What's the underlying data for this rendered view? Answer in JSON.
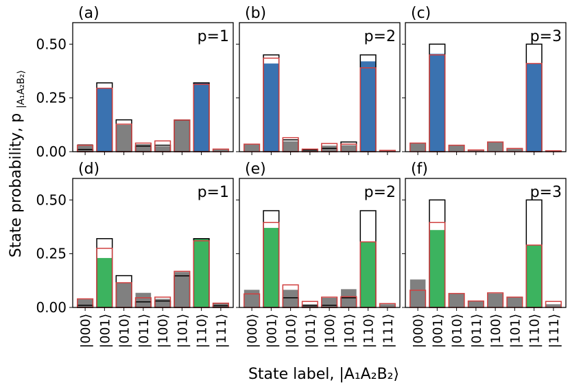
{
  "figure": {
    "ylabel": "State probability, p",
    "ylabel_sub": "|A₁A₂B₂⟩",
    "xlabel": "State label, |A₁A₂B₂⟩"
  },
  "colors": {
    "blue": "#3a72b0",
    "green": "#3cb35f",
    "gray": "#808080",
    "red_outline": "#d04040",
    "black_outline": "#000000"
  },
  "chart_data": [
    {
      "type": "bar",
      "panel": "(a)",
      "p_label": "p=1",
      "fill": "blue",
      "row": 0,
      "col": 0,
      "categories": [
        "|000⟩",
        "|001⟩",
        "|010⟩",
        "|011⟩",
        "|100⟩",
        "|101⟩",
        "|110⟩",
        "|111⟩"
      ],
      "series": [
        {
          "name": "measured",
          "values": [
            0.035,
            0.295,
            0.125,
            0.035,
            0.025,
            0.147,
            0.318,
            0.01
          ]
        },
        {
          "name": "ideal_outline",
          "values": [
            0.01,
            0.32,
            0.148,
            0.026,
            0.03,
            0.147,
            0.32,
            0.0
          ]
        },
        {
          "name": "noisy_outline",
          "values": [
            0.03,
            0.295,
            0.128,
            0.04,
            0.05,
            0.147,
            0.313,
            0.012
          ]
        }
      ],
      "ylim": [
        0,
        0.6
      ],
      "yticks": [
        0.0,
        0.25,
        0.5
      ],
      "ytick_labels": [
        "0.00",
        "0.25",
        "0.50"
      ]
    },
    {
      "type": "bar",
      "panel": "(b)",
      "p_label": "p=2",
      "fill": "blue",
      "row": 0,
      "col": 1,
      "categories": [
        "|000⟩",
        "|001⟩",
        "|010⟩",
        "|011⟩",
        "|100⟩",
        "|101⟩",
        "|110⟩",
        "|111⟩"
      ],
      "series": [
        {
          "name": "measured",
          "values": [
            0.035,
            0.41,
            0.048,
            0.01,
            0.028,
            0.03,
            0.42,
            0.005
          ]
        },
        {
          "name": "ideal_outline",
          "values": [
            0.0,
            0.45,
            0.055,
            0.008,
            0.015,
            0.045,
            0.45,
            0.0
          ]
        },
        {
          "name": "noisy_outline",
          "values": [
            0.035,
            0.435,
            0.065,
            0.012,
            0.038,
            0.035,
            0.39,
            0.006
          ]
        }
      ],
      "ylim": [
        0,
        0.6
      ],
      "yticks": [
        0.0,
        0.25,
        0.5
      ],
      "ytick_labels": [
        "0.00",
        "0.25",
        "0.50"
      ]
    },
    {
      "type": "bar",
      "panel": "(c)",
      "p_label": "p=3",
      "fill": "blue",
      "row": 0,
      "col": 2,
      "categories": [
        "|000⟩",
        "|001⟩",
        "|010⟩",
        "|011⟩",
        "|100⟩",
        "|101⟩",
        "|110⟩",
        "|111⟩"
      ],
      "series": [
        {
          "name": "measured",
          "values": [
            0.04,
            0.455,
            0.03,
            0.008,
            0.045,
            0.015,
            0.41,
            0.004
          ]
        },
        {
          "name": "ideal_outline",
          "values": [
            0.0,
            0.5,
            0.0,
            0.0,
            0.0,
            0.0,
            0.5,
            0.0
          ]
        },
        {
          "name": "noisy_outline",
          "values": [
            0.04,
            0.45,
            0.03,
            0.008,
            0.045,
            0.015,
            0.41,
            0.004
          ]
        }
      ],
      "ylim": [
        0,
        0.6
      ],
      "yticks": [
        0.0,
        0.25,
        0.5
      ],
      "ytick_labels": [
        "0.00",
        "0.25",
        "0.50"
      ]
    },
    {
      "type": "bar",
      "panel": "(d)",
      "p_label": "p=1",
      "fill": "green",
      "row": 1,
      "col": 0,
      "categories": [
        "|000⟩",
        "|001⟩",
        "|010⟩",
        "|011⟩",
        "|100⟩",
        "|101⟩",
        "|110⟩",
        "|111⟩"
      ],
      "series": [
        {
          "name": "measured",
          "values": [
            0.038,
            0.23,
            0.115,
            0.068,
            0.04,
            0.165,
            0.32,
            0.018
          ]
        },
        {
          "name": "ideal_outline",
          "values": [
            0.01,
            0.32,
            0.148,
            0.026,
            0.03,
            0.147,
            0.32,
            0.008
          ]
        },
        {
          "name": "noisy_outline",
          "values": [
            0.04,
            0.275,
            0.115,
            0.045,
            0.048,
            0.168,
            0.31,
            0.02
          ]
        }
      ],
      "ylim": [
        0,
        0.6
      ],
      "yticks": [
        0.0,
        0.25,
        0.5
      ],
      "ytick_labels": [
        "0.00",
        "0.25",
        "0.50"
      ]
    },
    {
      "type": "bar",
      "panel": "(e)",
      "p_label": "p=2",
      "fill": "green",
      "row": 1,
      "col": 1,
      "categories": [
        "|000⟩",
        "|001⟩",
        "|010⟩",
        "|011⟩",
        "|100⟩",
        "|101⟩",
        "|110⟩",
        "|111⟩"
      ],
      "series": [
        {
          "name": "measured",
          "values": [
            0.082,
            0.37,
            0.082,
            0.015,
            0.045,
            0.085,
            0.305,
            0.015
          ]
        },
        {
          "name": "ideal_outline",
          "values": [
            0.0,
            0.45,
            0.045,
            0.008,
            0.01,
            0.045,
            0.45,
            0.0
          ]
        },
        {
          "name": "noisy_outline",
          "values": [
            0.063,
            0.395,
            0.105,
            0.028,
            0.048,
            0.05,
            0.305,
            0.018
          ]
        }
      ],
      "ylim": [
        0,
        0.6
      ],
      "yticks": [
        0.0,
        0.25,
        0.5
      ],
      "ytick_labels": [
        "0.00",
        "0.25",
        "0.50"
      ]
    },
    {
      "type": "bar",
      "panel": "(f)",
      "p_label": "p=3",
      "fill": "green",
      "row": 1,
      "col": 2,
      "categories": [
        "|000⟩",
        "|001⟩",
        "|010⟩",
        "|011⟩",
        "|100⟩",
        "|101⟩",
        "|110⟩",
        "|111⟩"
      ],
      "series": [
        {
          "name": "measured",
          "values": [
            0.13,
            0.36,
            0.065,
            0.03,
            0.065,
            0.048,
            0.29,
            0.015
          ]
        },
        {
          "name": "ideal_outline",
          "values": [
            0.0,
            0.5,
            0.0,
            0.0,
            0.0,
            0.0,
            0.5,
            0.0
          ]
        },
        {
          "name": "noisy_outline",
          "values": [
            0.08,
            0.395,
            0.065,
            0.03,
            0.068,
            0.048,
            0.29,
            0.028
          ]
        }
      ],
      "ylim": [
        0,
        0.6
      ],
      "yticks": [
        0.0,
        0.25,
        0.5
      ],
      "ytick_labels": [
        "0.00",
        "0.25",
        "0.50"
      ]
    }
  ]
}
